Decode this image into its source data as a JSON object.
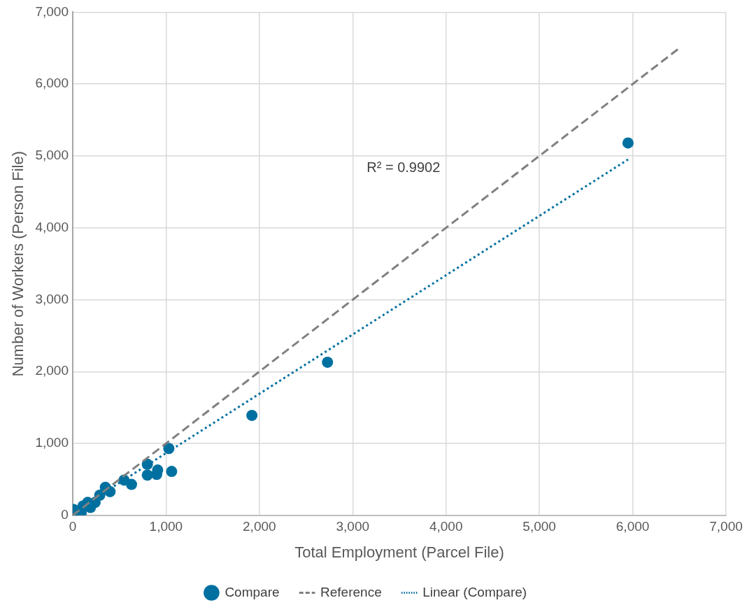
{
  "chart_data": {
    "type": "scatter",
    "xlabel": "Total Employment (Parcel File)",
    "ylabel": "Number of Workers (Person File)",
    "xlim": [
      0,
      7000
    ],
    "xticks": [
      {
        "value": 0,
        "label": "0"
      },
      {
        "value": 1000,
        "label": "1,000"
      },
      {
        "value": 2000,
        "label": "2,000"
      },
      {
        "value": 3000,
        "label": "3,000"
      },
      {
        "value": 4000,
        "label": "4,000"
      },
      {
        "value": 5000,
        "label": "5,000"
      },
      {
        "value": 6000,
        "label": "6,000"
      },
      {
        "value": 7000,
        "label": "7,000"
      }
    ],
    "ylim": [
      0,
      7000
    ],
    "yticks": [
      {
        "value": 0,
        "label": "0"
      },
      {
        "value": 1000,
        "label": "1,000"
      },
      {
        "value": 2000,
        "label": "2,000"
      },
      {
        "value": 3000,
        "label": "3,000"
      },
      {
        "value": 4000,
        "label": "4,000"
      },
      {
        "value": 5000,
        "label": "5,000"
      },
      {
        "value": 6000,
        "label": "6,000"
      },
      {
        "value": 7000,
        "label": "7,000"
      }
    ],
    "grid": true,
    "legend": "bottom",
    "annotations": [
      "R² = 0.9902"
    ],
    "series": [
      {
        "name": "Compare",
        "marker": "circle",
        "color": "#0070a0",
        "x": [
          5950,
          2730,
          1920,
          1030,
          1060,
          800,
          800,
          910,
          900,
          550,
          630,
          350,
          400,
          290,
          240,
          160,
          190,
          110,
          10,
          10,
          90
        ],
        "values": [
          5180,
          2130,
          1390,
          930,
          610,
          710,
          560,
          630,
          570,
          490,
          430,
          390,
          330,
          280,
          180,
          180,
          110,
          130,
          80,
          10,
          30
        ]
      },
      {
        "name": "Reference",
        "type": "line",
        "marker": "none",
        "line_style": "dashed",
        "color": "#808080",
        "x": [
          0,
          6500
        ],
        "values": [
          0,
          6500
        ]
      },
      {
        "name": "Linear (Compare)",
        "type": "line",
        "marker": "none",
        "line_style": "dotted",
        "color": "#0070a0",
        "x": [
          0,
          5950
        ],
        "values": [
          40,
          4950
        ]
      }
    ]
  }
}
